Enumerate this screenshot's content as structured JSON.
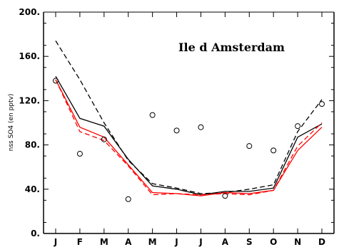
{
  "chart_data": {
    "type": "line",
    "title": "Ile d Amsterdam",
    "xlabel": "",
    "ylabel": "nss SO4 (en pptv)",
    "categories": [
      "J",
      "F",
      "M",
      "A",
      "M",
      "J",
      "J",
      "A",
      "S",
      "O",
      "N",
      "D"
    ],
    "ylim": [
      0,
      200
    ],
    "yticks": [
      0,
      40,
      80,
      120,
      160,
      200
    ],
    "ytick_labels": [
      "0.",
      "40.",
      "80.",
      "120.",
      "160.",
      "200."
    ],
    "grid": false,
    "series": [
      {
        "style": "solid",
        "color": "#000000",
        "marker": "none",
        "values": [
          142,
          104,
          97,
          67,
          43,
          40,
          35,
          38,
          38,
          41,
          87,
          99
        ]
      },
      {
        "style": "dashed",
        "color": "#000000",
        "marker": "none",
        "values": [
          174,
          139,
          100,
          66,
          45,
          41,
          36,
          37,
          40,
          44,
          92,
          121
        ]
      },
      {
        "style": "solid",
        "color": "#ff0000",
        "marker": "none",
        "values": [
          139,
          96,
          87,
          62,
          37,
          36,
          34,
          37,
          36,
          39,
          75,
          96
        ]
      },
      {
        "style": "dashed",
        "color": "#ff0000",
        "marker": "none",
        "values": [
          139,
          92,
          84,
          61,
          35,
          36,
          35,
          36,
          35,
          39,
          79,
          100
        ]
      },
      {
        "style": "none",
        "color": "#000000",
        "marker": "circle",
        "values": [
          138,
          72,
          85,
          31,
          107,
          93,
          96,
          34,
          79,
          75,
          97,
          117
        ]
      }
    ]
  }
}
